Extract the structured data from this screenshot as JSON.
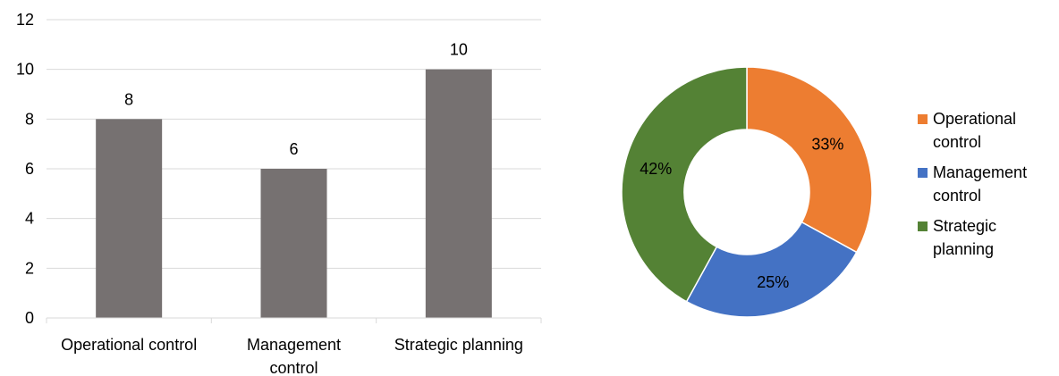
{
  "chart_data": [
    {
      "type": "bar",
      "categories": [
        "Operational control",
        "Management control",
        "Strategic planning"
      ],
      "category_display": [
        [
          "Operational control"
        ],
        [
          "Management",
          "control"
        ],
        [
          "Strategic planning"
        ]
      ],
      "values": [
        8,
        6,
        10
      ],
      "data_labels": [
        "8",
        "6",
        "10"
      ],
      "ylim": [
        0,
        12
      ],
      "yticks": [
        "0",
        "2",
        "4",
        "6",
        "8",
        "10",
        "12"
      ],
      "grid": true,
      "bar_color": "#767171",
      "grid_color": "#d9d9d9",
      "title": "",
      "xlabel": "",
      "ylabel": ""
    },
    {
      "type": "pie",
      "style": "donut",
      "labels": [
        "Operational control",
        "Management control",
        "Strategic planning"
      ],
      "legend_display": [
        [
          "Operational",
          "control"
        ],
        [
          "Management",
          "control"
        ],
        [
          "Strategic",
          "planning"
        ]
      ],
      "values": [
        33,
        25,
        42
      ],
      "data_labels": [
        "33%",
        "25%",
        "42%"
      ],
      "colors": [
        "#ed7d31",
        "#4472c4",
        "#548235"
      ],
      "legend_placement": "right",
      "title": ""
    }
  ]
}
